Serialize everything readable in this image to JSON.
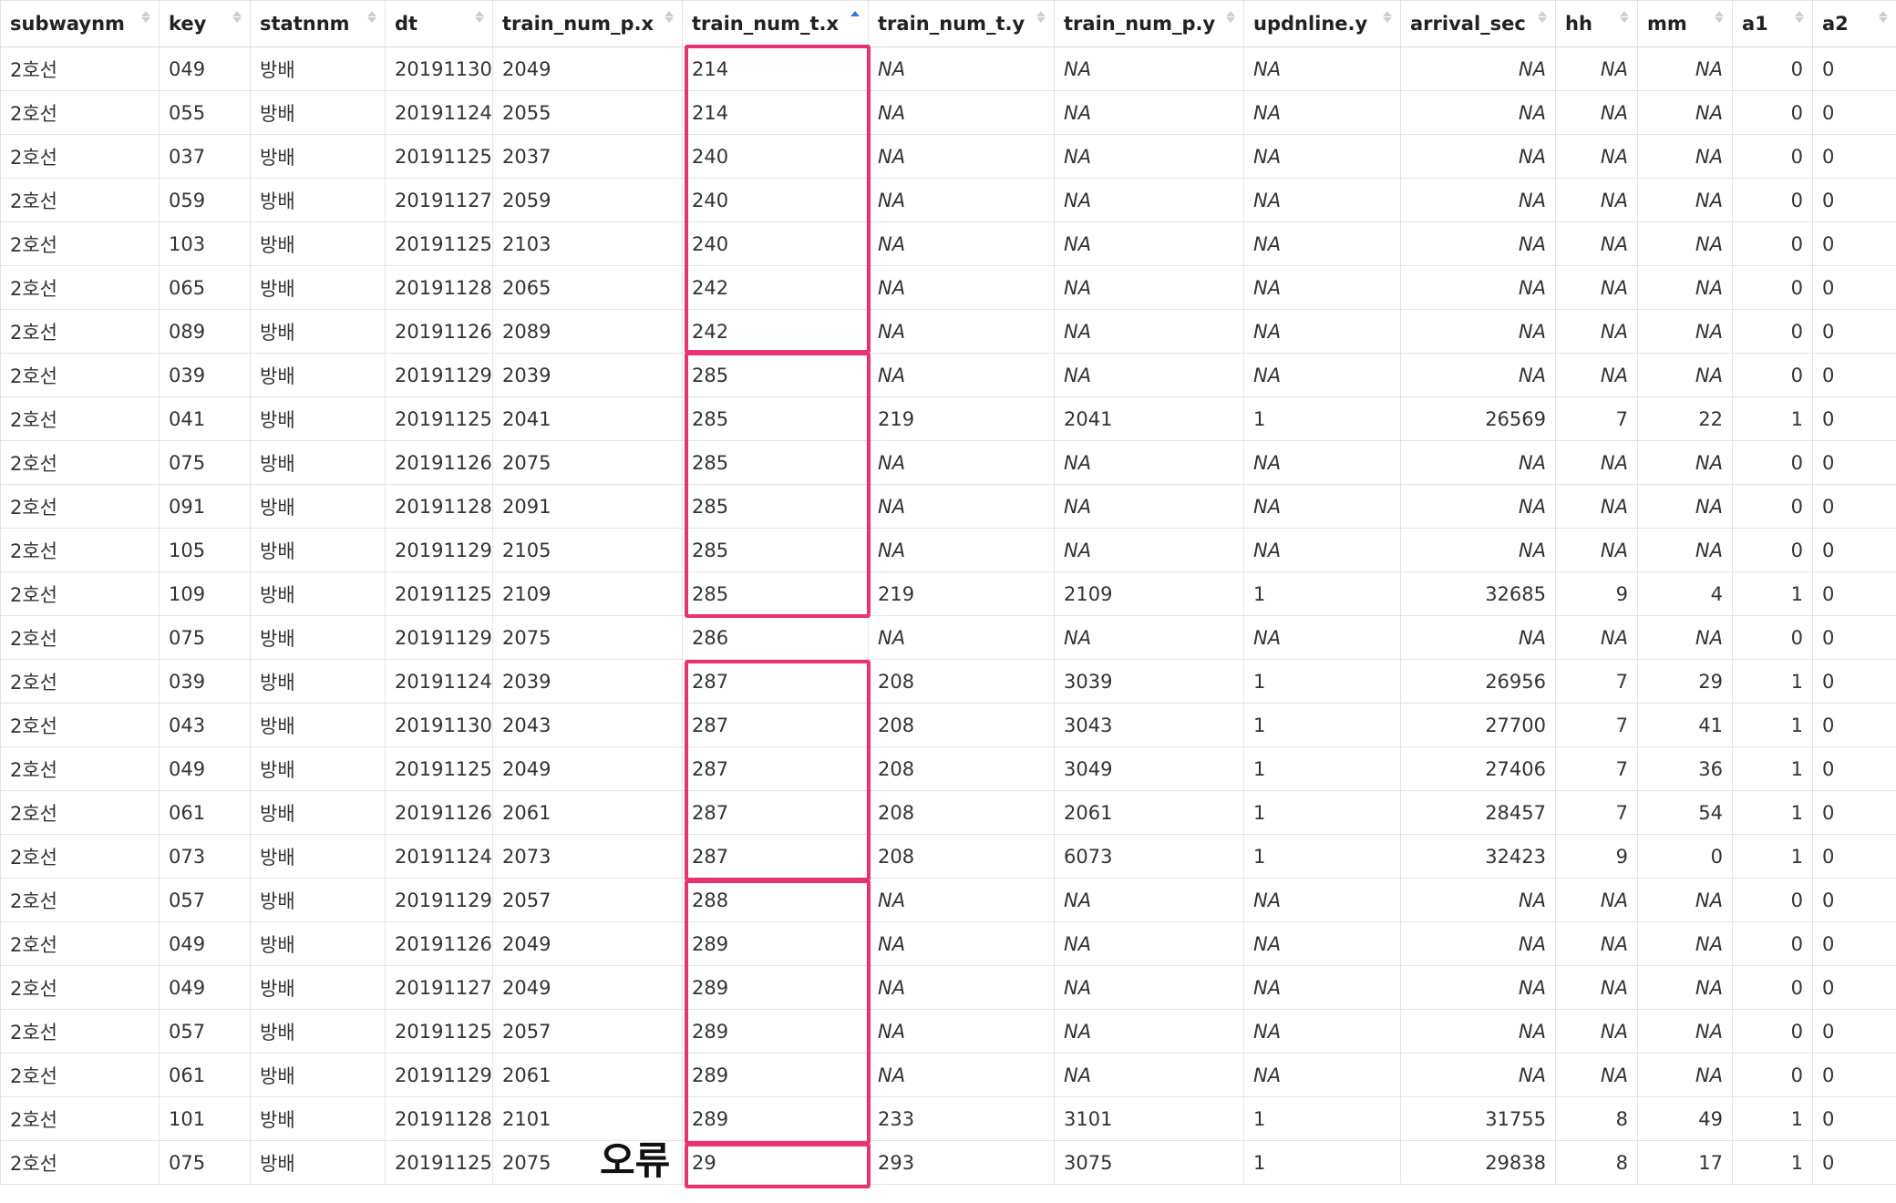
{
  "accent_color": "#2f7ed8",
  "highlight_color": "#e8336d",
  "na_color": "#b8b8b8",
  "sorted_column": "train_num_t.x",
  "sort_direction": "ascending",
  "annotation": {
    "label": "오류"
  },
  "columns": [
    {
      "key": "subwaynm",
      "label": "subwaynm",
      "width": 174,
      "align": "left"
    },
    {
      "key": "key",
      "label": "key",
      "width": 100,
      "align": "left"
    },
    {
      "key": "statnnm",
      "label": "statnnm",
      "width": 148,
      "align": "left"
    },
    {
      "key": "dt",
      "label": "dt",
      "width": 118,
      "align": "left"
    },
    {
      "key": "train_num_p_x",
      "label": "train_num_p.x",
      "width": 208,
      "align": "left"
    },
    {
      "key": "train_num_t_x",
      "label": "train_num_t.x",
      "width": 204,
      "align": "left"
    },
    {
      "key": "train_num_t_y",
      "label": "train_num_t.y",
      "width": 204,
      "align": "left"
    },
    {
      "key": "train_num_p_y",
      "label": "train_num_p.y",
      "width": 208,
      "align": "left"
    },
    {
      "key": "updnline_y",
      "label": "updnline.y",
      "width": 172,
      "align": "left"
    },
    {
      "key": "arrival_sec",
      "label": "arrival_sec",
      "width": 170,
      "align": "right"
    },
    {
      "key": "hh",
      "label": "hh",
      "width": 90,
      "align": "right"
    },
    {
      "key": "mm",
      "label": "mm",
      "width": 104,
      "align": "right"
    },
    {
      "key": "a1",
      "label": "a1",
      "width": 88,
      "align": "right"
    },
    {
      "key": "a2",
      "label": "a2",
      "width": 92,
      "align": "left"
    }
  ],
  "rows": [
    [
      "2호선",
      "049",
      "방배",
      "20191130",
      "2049",
      "214",
      "NA",
      "NA",
      "NA",
      "NA",
      "NA",
      "NA",
      "0",
      "0"
    ],
    [
      "2호선",
      "055",
      "방배",
      "20191124",
      "2055",
      "214",
      "NA",
      "NA",
      "NA",
      "NA",
      "NA",
      "NA",
      "0",
      "0"
    ],
    [
      "2호선",
      "037",
      "방배",
      "20191125",
      "2037",
      "240",
      "NA",
      "NA",
      "NA",
      "NA",
      "NA",
      "NA",
      "0",
      "0"
    ],
    [
      "2호선",
      "059",
      "방배",
      "20191127",
      "2059",
      "240",
      "NA",
      "NA",
      "NA",
      "NA",
      "NA",
      "NA",
      "0",
      "0"
    ],
    [
      "2호선",
      "103",
      "방배",
      "20191125",
      "2103",
      "240",
      "NA",
      "NA",
      "NA",
      "NA",
      "NA",
      "NA",
      "0",
      "0"
    ],
    [
      "2호선",
      "065",
      "방배",
      "20191128",
      "2065",
      "242",
      "NA",
      "NA",
      "NA",
      "NA",
      "NA",
      "NA",
      "0",
      "0"
    ],
    [
      "2호선",
      "089",
      "방배",
      "20191126",
      "2089",
      "242",
      "NA",
      "NA",
      "NA",
      "NA",
      "NA",
      "NA",
      "0",
      "0"
    ],
    [
      "2호선",
      "039",
      "방배",
      "20191129",
      "2039",
      "285",
      "NA",
      "NA",
      "NA",
      "NA",
      "NA",
      "NA",
      "0",
      "0"
    ],
    [
      "2호선",
      "041",
      "방배",
      "20191125",
      "2041",
      "285",
      "219",
      "2041",
      "1",
      "26569",
      "7",
      "22",
      "1",
      "0"
    ],
    [
      "2호선",
      "075",
      "방배",
      "20191126",
      "2075",
      "285",
      "NA",
      "NA",
      "NA",
      "NA",
      "NA",
      "NA",
      "0",
      "0"
    ],
    [
      "2호선",
      "091",
      "방배",
      "20191128",
      "2091",
      "285",
      "NA",
      "NA",
      "NA",
      "NA",
      "NA",
      "NA",
      "0",
      "0"
    ],
    [
      "2호선",
      "105",
      "방배",
      "20191129",
      "2105",
      "285",
      "NA",
      "NA",
      "NA",
      "NA",
      "NA",
      "NA",
      "0",
      "0"
    ],
    [
      "2호선",
      "109",
      "방배",
      "20191125",
      "2109",
      "285",
      "219",
      "2109",
      "1",
      "32685",
      "9",
      "4",
      "1",
      "0"
    ],
    [
      "2호선",
      "075",
      "방배",
      "20191129",
      "2075",
      "286",
      "NA",
      "NA",
      "NA",
      "NA",
      "NA",
      "NA",
      "0",
      "0"
    ],
    [
      "2호선",
      "039",
      "방배",
      "20191124",
      "2039",
      "287",
      "208",
      "3039",
      "1",
      "26956",
      "7",
      "29",
      "1",
      "0"
    ],
    [
      "2호선",
      "043",
      "방배",
      "20191130",
      "2043",
      "287",
      "208",
      "3043",
      "1",
      "27700",
      "7",
      "41",
      "1",
      "0"
    ],
    [
      "2호선",
      "049",
      "방배",
      "20191125",
      "2049",
      "287",
      "208",
      "3049",
      "1",
      "27406",
      "7",
      "36",
      "1",
      "0"
    ],
    [
      "2호선",
      "061",
      "방배",
      "20191126",
      "2061",
      "287",
      "208",
      "2061",
      "1",
      "28457",
      "7",
      "54",
      "1",
      "0"
    ],
    [
      "2호선",
      "073",
      "방배",
      "20191124",
      "2073",
      "287",
      "208",
      "6073",
      "1",
      "32423",
      "9",
      "0",
      "1",
      "0"
    ],
    [
      "2호선",
      "057",
      "방배",
      "20191129",
      "2057",
      "288",
      "NA",
      "NA",
      "NA",
      "NA",
      "NA",
      "NA",
      "0",
      "0"
    ],
    [
      "2호선",
      "049",
      "방배",
      "20191126",
      "2049",
      "289",
      "NA",
      "NA",
      "NA",
      "NA",
      "NA",
      "NA",
      "0",
      "0"
    ],
    [
      "2호선",
      "049",
      "방배",
      "20191127",
      "2049",
      "289",
      "NA",
      "NA",
      "NA",
      "NA",
      "NA",
      "NA",
      "0",
      "0"
    ],
    [
      "2호선",
      "057",
      "방배",
      "20191125",
      "2057",
      "289",
      "NA",
      "NA",
      "NA",
      "NA",
      "NA",
      "NA",
      "0",
      "0"
    ],
    [
      "2호선",
      "061",
      "방배",
      "20191129",
      "2061",
      "289",
      "NA",
      "NA",
      "NA",
      "NA",
      "NA",
      "NA",
      "0",
      "0"
    ],
    [
      "2호선",
      "101",
      "방배",
      "20191128",
      "2101",
      "289",
      "233",
      "3101",
      "1",
      "31755",
      "8",
      "49",
      "1",
      "0"
    ],
    [
      "2호선",
      "075",
      "방배",
      "20191125",
      "2075",
      "29",
      "293",
      "3075",
      "1",
      "29838",
      "8",
      "17",
      "1",
      "0"
    ]
  ],
  "highlight_groups": [
    {
      "name": "group-214-242",
      "first_row": 0,
      "last_row": 6
    },
    {
      "name": "group-285",
      "first_row": 7,
      "last_row": 12
    },
    {
      "name": "group-287",
      "first_row": 14,
      "last_row": 18
    },
    {
      "name": "group-288-289",
      "first_row": 19,
      "last_row": 24
    },
    {
      "name": "group-29-error",
      "first_row": 25,
      "last_row": 25
    }
  ]
}
